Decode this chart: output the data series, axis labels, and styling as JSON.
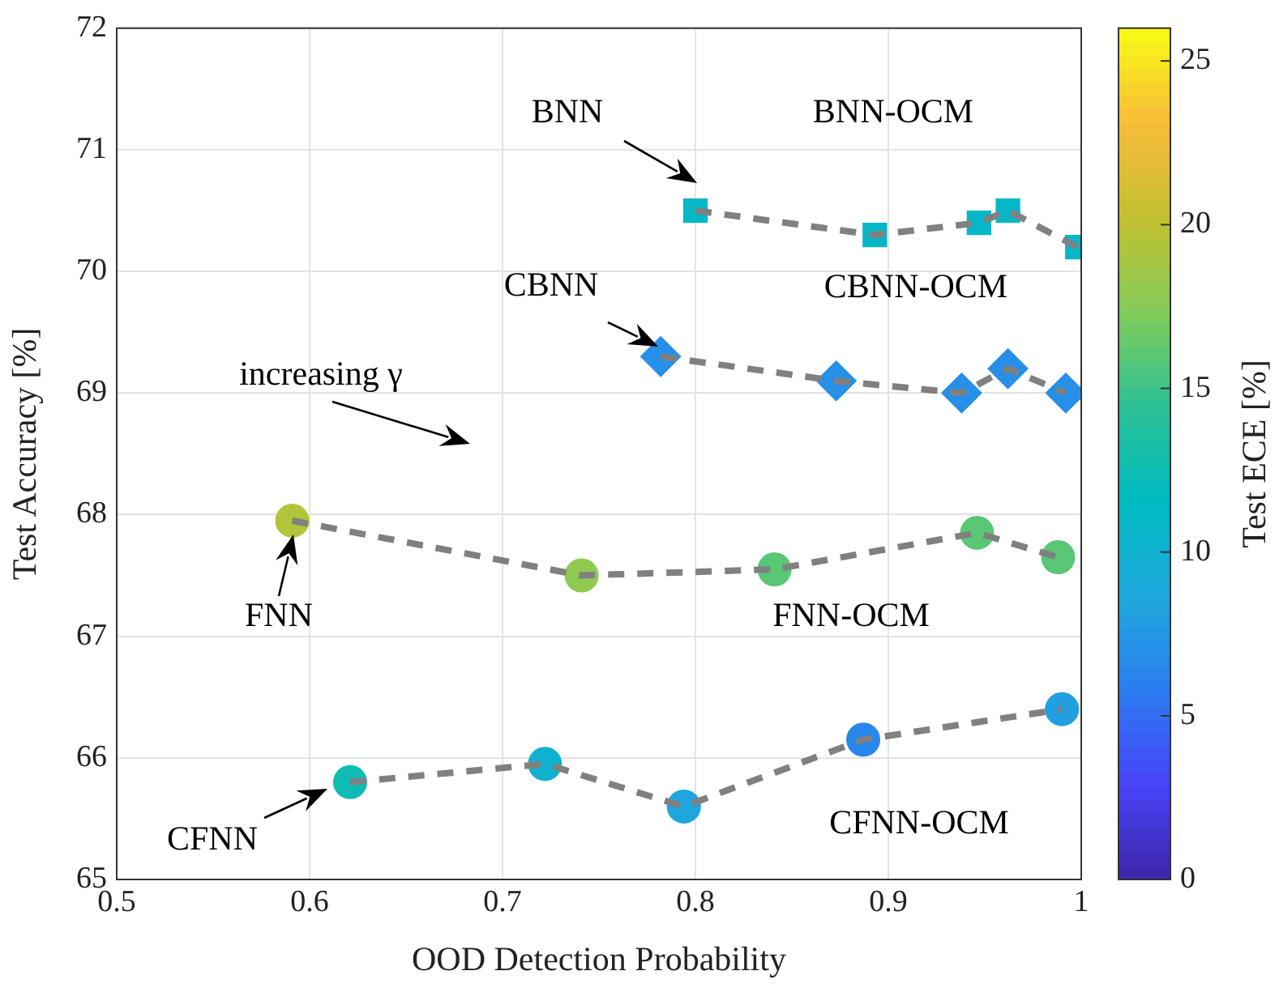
{
  "chart_data": {
    "type": "scatter",
    "xlabel": "OOD Detection Probability",
    "ylabel": "Test Accuracy [%]",
    "clabel": "Test ECE [%]",
    "xlim": [
      0.5,
      1
    ],
    "xticks": [
      0.5,
      0.6,
      0.7,
      0.8,
      0.9,
      1
    ],
    "ylim": [
      65,
      72
    ],
    "yticks": [
      65,
      66,
      67,
      68,
      69,
      70,
      71,
      72
    ],
    "clim": [
      0,
      26
    ],
    "cticks": [
      0,
      5,
      10,
      15,
      20,
      25
    ],
    "grid": true,
    "series": [
      {
        "type": "line",
        "color": "#808080",
        "line_style": "dashed",
        "marker": "none",
        "x": [
          0.8,
          0.893,
          0.947,
          0.962,
          0.998
        ],
        "values": [
          70.5,
          70.3,
          70.4,
          70.5,
          70.2
        ]
      },
      {
        "type": "line",
        "color": "#808080",
        "line_style": "dashed",
        "marker": "none",
        "x": [
          0.782,
          0.873,
          0.938,
          0.962,
          0.992
        ],
        "values": [
          69.3,
          69.1,
          69.0,
          69.2,
          69.0
        ]
      },
      {
        "type": "line",
        "color": "#808080",
        "line_style": "dashed",
        "marker": "none",
        "x": [
          0.591,
          0.741,
          0.841,
          0.946,
          0.988
        ],
        "values": [
          67.95,
          67.5,
          67.55,
          67.85,
          67.65
        ]
      },
      {
        "type": "line",
        "color": "#808080",
        "line_style": "dashed",
        "marker": "none",
        "x": [
          0.621,
          0.722,
          0.794,
          0.887,
          0.99
        ],
        "values": [
          65.8,
          65.95,
          65.6,
          66.15,
          66.4
        ]
      },
      {
        "marker": "square",
        "x": [
          0.8,
          0.893,
          0.947,
          0.962,
          0.998
        ],
        "values": [
          70.5,
          70.3,
          70.4,
          70.5,
          70.2
        ],
        "cvalues": [
          11,
          11,
          11,
          11,
          11
        ]
      },
      {
        "marker": "diamond",
        "x": [
          0.782,
          0.873,
          0.938,
          0.962,
          0.992
        ],
        "values": [
          69.3,
          69.1,
          69.0,
          69.2,
          69.0
        ],
        "cvalues": [
          7,
          7,
          7,
          7,
          7
        ]
      },
      {
        "marker": "circle",
        "x": [
          0.591,
          0.741,
          0.841,
          0.946,
          0.988
        ],
        "values": [
          67.95,
          67.5,
          67.55,
          67.85,
          67.65
        ],
        "cvalues": [
          19.5,
          18,
          16,
          16,
          16
        ],
        "colors": [
          "#b3c33a",
          "#90c950",
          "#59c774",
          "#59c774",
          "#59c774"
        ]
      },
      {
        "marker": "circle",
        "x": [
          0.621,
          0.722,
          0.794,
          0.887,
          0.99
        ],
        "values": [
          65.8,
          65.95,
          65.6,
          66.15,
          66.4
        ],
        "cvalues": [
          12.5,
          10,
          8.5,
          6.5,
          8
        ],
        "colors": [
          "#0ebcb3",
          "#10b1d0",
          "#1fa6dd",
          "#2987eb",
          "#219fe1"
        ]
      }
    ],
    "annotations": [
      "BNN",
      "BNN-OCM",
      "CBNN",
      "CBNN-OCM",
      "increasing γ",
      "FNN",
      "FNN-OCM",
      "CFNN",
      "CFNN-OCM"
    ]
  }
}
